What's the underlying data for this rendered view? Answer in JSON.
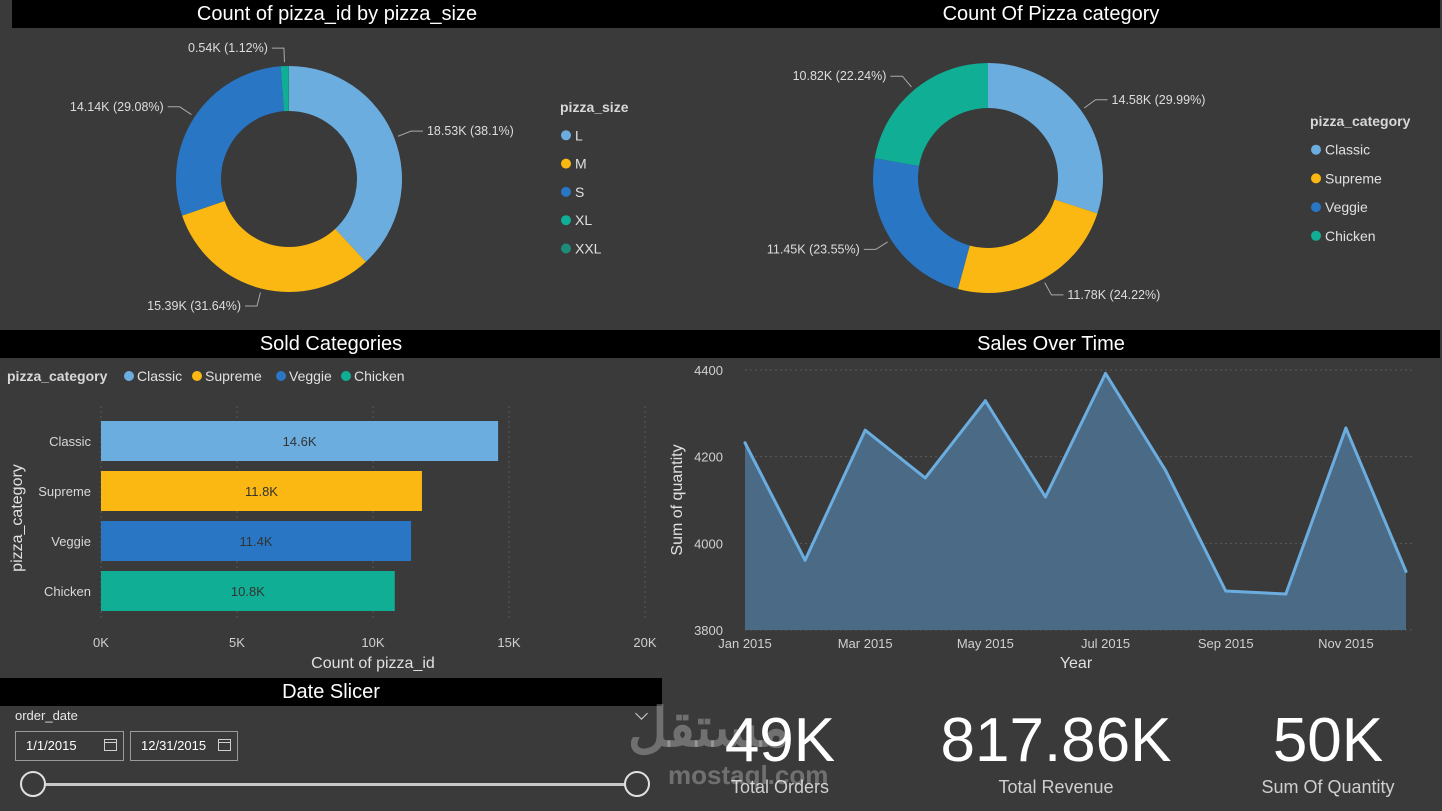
{
  "charts": {
    "size_donut": {
      "title": "Count of pizza_id by pizza_size",
      "legend_title": "pizza_size"
    },
    "category_donut": {
      "title": "Count Of Pizza category",
      "legend_title": "pizza_category"
    },
    "sold_categories": {
      "title": "Sold Categories",
      "legend_title": "pizza_category"
    },
    "sales_over_time": {
      "title": "Sales Over Time"
    }
  },
  "chart_data": [
    {
      "type": "pie",
      "variant": "donut",
      "title": "Count of pizza_id by pizza_size",
      "legend_title": "pizza_size",
      "legend_position": "right",
      "slices": [
        {
          "name": "L",
          "value": 18.53,
          "label": "18.53K (38.1%)",
          "color": "#6CADE0"
        },
        {
          "name": "M",
          "value": 15.39,
          "label": "15.39K (31.64%)",
          "color": "#FBB812"
        },
        {
          "name": "S",
          "value": 14.14,
          "label": "14.14K (29.08%)",
          "color": "#2876C4"
        },
        {
          "name": "XL",
          "value": 0.54,
          "label": "0.54K (1.12%)",
          "color": "#10AE94"
        },
        {
          "name": "XXL",
          "value": 0.03,
          "label": "",
          "color": "#1E8C7A"
        }
      ]
    },
    {
      "type": "pie",
      "variant": "donut",
      "title": "Count Of Pizza category",
      "legend_title": "pizza_category",
      "legend_position": "right",
      "slices": [
        {
          "name": "Classic",
          "value": 14.58,
          "label": "14.58K (29.99%)",
          "color": "#6CADE0"
        },
        {
          "name": "Supreme",
          "value": 11.78,
          "label": "11.78K (24.22%)",
          "color": "#FBB812"
        },
        {
          "name": "Veggie",
          "value": 11.45,
          "label": "11.45K (23.55%)",
          "color": "#2876C4"
        },
        {
          "name": "Chicken",
          "value": 10.82,
          "label": "10.82K (22.24%)",
          "color": "#10AE94"
        }
      ]
    },
    {
      "type": "bar",
      "orientation": "horizontal",
      "title": "Sold Categories",
      "legend_title": "pizza_category",
      "legend_position": "top-left",
      "categories": [
        "Classic",
        "Supreme",
        "Veggie",
        "Chicken"
      ],
      "values": [
        14.6,
        11.8,
        11.4,
        10.8
      ],
      "data_labels": [
        "14.6K",
        "11.8K",
        "11.4K",
        "10.8K"
      ],
      "colors": [
        "#6CADE0",
        "#FBB812",
        "#2876C4",
        "#10AE94"
      ],
      "xlabel": "Count of pizza_id",
      "ylabel": "pizza_category",
      "xlim": [
        0,
        20
      ],
      "xticks": [
        "0K",
        "5K",
        "10K",
        "15K",
        "20K"
      ],
      "grid": true
    },
    {
      "type": "area",
      "title": "Sales Over Time",
      "x": [
        "Jan 2015",
        "Feb 2015",
        "Mar 2015",
        "Apr 2015",
        "May 2015",
        "Jun 2015",
        "Jul 2015",
        "Aug 2015",
        "Sep 2015",
        "Oct 2015",
        "Nov 2015",
        "Dec 2015"
      ],
      "y": [
        4232,
        3961,
        4261,
        4151,
        4329,
        4107,
        4392,
        4168,
        3890,
        3883,
        4266,
        3935
      ],
      "xticks": [
        "Jan 2015",
        "Mar 2015",
        "May 2015",
        "Jul 2015",
        "Sep 2015",
        "Nov 2015"
      ],
      "yticks": [
        3800,
        4000,
        4200,
        4400
      ],
      "ylim": [
        3800,
        4400
      ],
      "xlabel": "Year",
      "ylabel": "Sum of quantity",
      "line_color": "#6CADE0",
      "fill_color": "#4A6A86",
      "grid": true
    }
  ],
  "slicer": {
    "title": "Date Slicer",
    "field_label": "order_date",
    "start_date": "1/1/2015",
    "end_date": "12/31/2015"
  },
  "cards": [
    {
      "value": "49K",
      "label": "Total Orders"
    },
    {
      "value": "817.86K",
      "label": "Total Revenue"
    },
    {
      "value": "50K",
      "label": "Sum Of Quantity"
    }
  ],
  "watermark": {
    "arabic": "مستقل",
    "latin": "mostaql.com"
  },
  "colors": {
    "background": "#3a3a3a",
    "title_bar": "#000000",
    "classic": "#6CADE0",
    "supreme": "#FBB812",
    "veggie": "#2876C4",
    "chicken": "#10AE94"
  }
}
